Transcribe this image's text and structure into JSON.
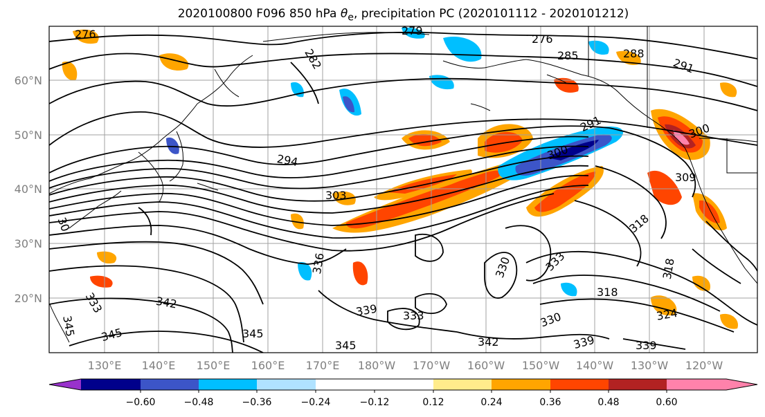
{
  "title_prefix": "2020100800 F096 850 hPa ",
  "title_theta": "θ",
  "title_sub": "e",
  "title_suffix": ", precipitation PC (2020101112 - 2020101212)",
  "lat_labels": [
    "60°N",
    "50°N",
    "40°N",
    "30°N",
    "20°N"
  ],
  "lon_labels": [
    "130°E",
    "140°E",
    "150°E",
    "160°E",
    "170°E",
    "180°W",
    "170°W",
    "160°W",
    "150°W",
    "140°W",
    "130°W",
    "120°W"
  ],
  "colorbar": {
    "colors": [
      "#9932cc",
      "#00008b",
      "#3c55c8",
      "#00bfff",
      "#b0e2ff",
      "#ffffff",
      "#ffec8b",
      "#ffa500",
      "#ff4500",
      "#b22222",
      "#ff82ab"
    ],
    "tick_labels": [
      "−0.60",
      "−0.48",
      "−0.36",
      "−0.24",
      "−0.12",
      "0.12",
      "0.24",
      "0.36",
      "0.48",
      "0.60"
    ]
  },
  "contour_labels": [
    "276",
    "282",
    "279",
    "276",
    "285",
    "288",
    "291",
    "294",
    "291",
    "300",
    "300",
    "303",
    "309",
    "318",
    "330",
    "333",
    "336",
    "318",
    "318",
    "339",
    "333",
    "330",
    "324",
    "342",
    "342",
    "339",
    "339",
    "345",
    "345",
    "345",
    "345",
    "30",
    "333"
  ]
}
